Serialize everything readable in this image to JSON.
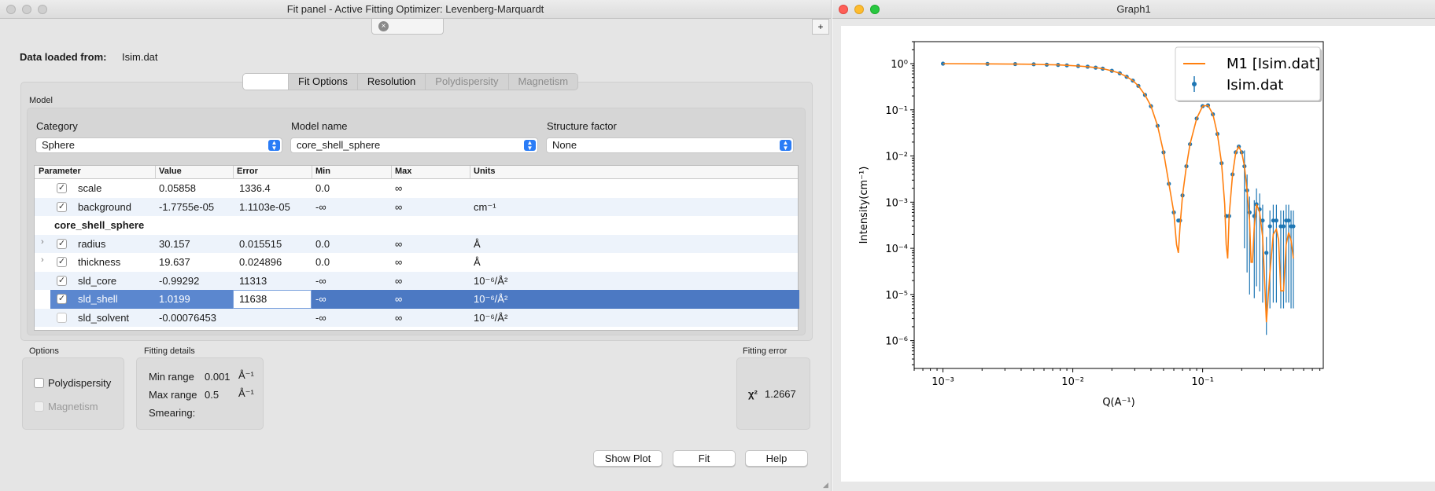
{
  "fit_window": {
    "title": "Fit panel - Active Fitting Optimizer: Levenberg-Marquardt",
    "plus_label": "+",
    "tab_close_glyph": "×",
    "data_loaded_label": "Data loaded from:",
    "data_loaded_value": "Isim.dat",
    "tabs": [
      {
        "label": "",
        "active": true
      },
      {
        "label": "Fit Options"
      },
      {
        "label": "Resolution"
      },
      {
        "label": "Polydispersity",
        "disabled": true
      },
      {
        "label": "Magnetism",
        "disabled": true
      }
    ],
    "model": {
      "group_title": "Model",
      "category_label": "Category",
      "category_value": "Sphere",
      "model_name_label": "Model name",
      "model_name_value": "core_shell_sphere",
      "structure_factor_label": "Structure factor",
      "structure_factor_value": "None"
    },
    "table": {
      "headers": [
        "Parameter",
        "Value",
        "Error",
        "Min",
        "Max",
        "Units"
      ],
      "rows": [
        {
          "param": "scale",
          "value": "0.05858",
          "error": "1336.4",
          "min": "0.0",
          "max": "∞",
          "units": "",
          "checked": true
        },
        {
          "param": "background",
          "value": "-1.7755e-05",
          "error": "1.1103e-05",
          "min": "-∞",
          "max": "∞",
          "units": "cm⁻¹",
          "checked": true
        },
        {
          "group": "core_shell_sphere"
        },
        {
          "param": "radius",
          "value": "30.157",
          "error": "0.015515",
          "min": "0.0",
          "max": "∞",
          "units": "Å",
          "checked": true,
          "expandable": true
        },
        {
          "param": "thickness",
          "value": "19.637",
          "error": "0.024896",
          "min": "0.0",
          "max": "∞",
          "units": "Å",
          "checked": true,
          "expandable": true
        },
        {
          "param": "sld_core",
          "value": "-0.99292",
          "error": "11313",
          "min": "-∞",
          "max": "∞",
          "units": "10⁻⁶/Å²",
          "checked": true
        },
        {
          "param": "sld_shell",
          "value": "1.0199",
          "error": "11638",
          "min": "-∞",
          "max": "∞",
          "units": "10⁻⁶/Å²",
          "checked": true,
          "selected": true
        },
        {
          "param": "sld_solvent",
          "value": "-0.00076453",
          "error": "",
          "min": "-∞",
          "max": "∞",
          "units": "10⁻⁶/Å²",
          "checked": false
        }
      ]
    },
    "options": {
      "title": "Options",
      "polydispersity_label": "Polydispersity",
      "magnetism_label": "Magnetism"
    },
    "fitting_details": {
      "title": "Fitting details",
      "min_range_label": "Min range",
      "min_range_value": "0.001",
      "max_range_label": "Max range",
      "max_range_value": "0.5",
      "range_unit": "Å⁻¹",
      "smearing_label": "Smearing:"
    },
    "fitting_error": {
      "title": "Fitting error",
      "chi2_label": "χ²",
      "chi2_value": "1.2667"
    },
    "buttons": {
      "show_plot": "Show Plot",
      "fit": "Fit",
      "help": "Help"
    }
  },
  "graph_window": {
    "title": "Graph1"
  },
  "chart_data": {
    "type": "line",
    "xlabel": "Q(A⁻¹)",
    "ylabel": "Intensity(cm⁻¹)",
    "xscale": "log",
    "yscale": "log",
    "xlim": [
      0.0006,
      0.85
    ],
    "ylim": [
      2.5e-07,
      3
    ],
    "xticks": [
      "10⁻³",
      "10⁻²",
      "10⁻¹"
    ],
    "yticks": [
      "10⁰",
      "10⁻¹",
      "10⁻²",
      "10⁻³",
      "10⁻⁴",
      "10⁻⁵",
      "10⁻⁶"
    ],
    "legend_position": "top-right",
    "colors": {
      "model": "#ff7f0e",
      "data": "#1f77b4"
    },
    "series": [
      {
        "name": "M1 [Isim.dat]",
        "kind": "line",
        "x": [
          0.001,
          0.0022,
          0.0036,
          0.005,
          0.0063,
          0.0077,
          0.009,
          0.011,
          0.013,
          0.015,
          0.017,
          0.02,
          0.023,
          0.026,
          0.029,
          0.032,
          0.036,
          0.04,
          0.045,
          0.05,
          0.055,
          0.06,
          0.063,
          0.065,
          0.067,
          0.07,
          0.075,
          0.08,
          0.09,
          0.1,
          0.11,
          0.12,
          0.13,
          0.14,
          0.148,
          0.152,
          0.156,
          0.16,
          0.17,
          0.18,
          0.19,
          0.2,
          0.21,
          0.22,
          0.23,
          0.236,
          0.242,
          0.25,
          0.26,
          0.275,
          0.29,
          0.3,
          0.31,
          0.33,
          0.35,
          0.37,
          0.385,
          0.4,
          0.42,
          0.44,
          0.46,
          0.48,
          0.5
        ],
        "y": [
          1.0,
          0.99,
          0.98,
          0.97,
          0.95,
          0.94,
          0.92,
          0.89,
          0.86,
          0.82,
          0.78,
          0.7,
          0.62,
          0.52,
          0.43,
          0.33,
          0.21,
          0.12,
          0.045,
          0.012,
          0.0025,
          0.0006,
          0.00012,
          8e-05,
          0.0003,
          0.0014,
          0.006,
          0.018,
          0.065,
          0.12,
          0.125,
          0.08,
          0.03,
          0.007,
          0.0009,
          0.00012,
          6e-05,
          0.0005,
          0.004,
          0.012,
          0.016,
          0.012,
          0.006,
          0.0018,
          0.0004,
          5e-05,
          5e-05,
          0.0003,
          0.0009,
          0.0006,
          0.00018,
          2e-05,
          2.5e-06,
          3e-05,
          0.0002,
          0.00026,
          0.00015,
          1.2e-05,
          1.2e-05,
          0.00012,
          0.00022,
          0.00015,
          6e-05
        ]
      },
      {
        "name": "Isim.dat",
        "kind": "errorbar-points",
        "x": [
          0.001,
          0.0022,
          0.0036,
          0.005,
          0.0063,
          0.0077,
          0.009,
          0.011,
          0.013,
          0.015,
          0.017,
          0.02,
          0.023,
          0.026,
          0.029,
          0.032,
          0.036,
          0.04,
          0.045,
          0.05,
          0.055,
          0.06,
          0.065,
          0.067,
          0.07,
          0.075,
          0.08,
          0.09,
          0.1,
          0.11,
          0.12,
          0.13,
          0.14,
          0.152,
          0.16,
          0.17,
          0.18,
          0.19,
          0.2,
          0.21,
          0.22,
          0.23,
          0.25,
          0.26,
          0.275,
          0.29,
          0.31,
          0.33,
          0.35,
          0.37,
          0.4,
          0.42,
          0.44,
          0.46,
          0.48,
          0.5
        ],
        "y": [
          1.0,
          0.99,
          0.98,
          0.97,
          0.95,
          0.94,
          0.92,
          0.89,
          0.86,
          0.82,
          0.78,
          0.7,
          0.62,
          0.52,
          0.43,
          0.33,
          0.21,
          0.12,
          0.045,
          0.012,
          0.0025,
          0.0006,
          0.0004,
          0.0004,
          0.0014,
          0.006,
          0.018,
          0.065,
          0.12,
          0.125,
          0.08,
          0.03,
          0.007,
          0.0005,
          0.0005,
          0.004,
          0.012,
          0.016,
          0.012,
          0.006,
          0.0018,
          0.0006,
          0.0005,
          0.0009,
          0.0007,
          0.0004,
          8e-05,
          0.0003,
          0.0004,
          0.0004,
          0.0003,
          0.0003,
          0.0004,
          0.0004,
          0.0003,
          0.0003
        ]
      }
    ]
  }
}
